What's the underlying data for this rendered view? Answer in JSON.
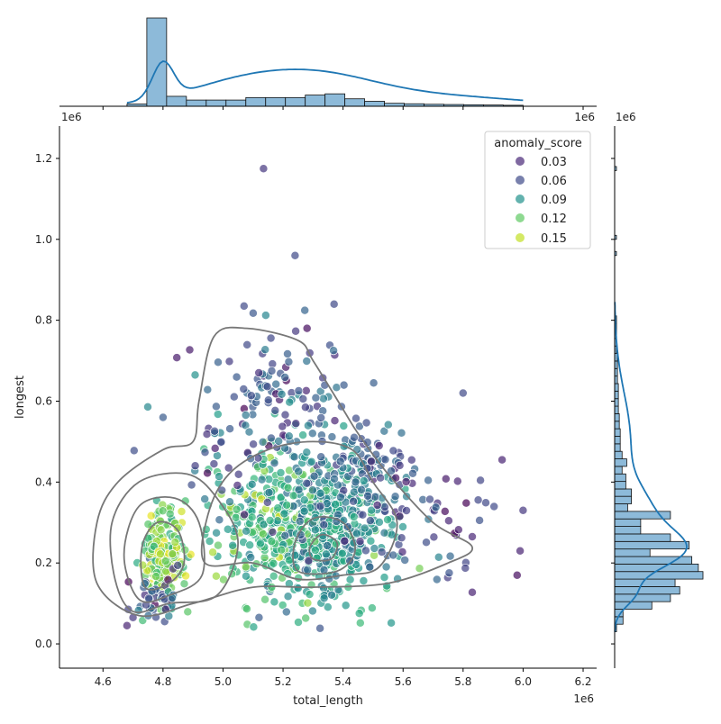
{
  "chart_data": {
    "type": "scatter",
    "subtype": "jointplot",
    "xlabel": "total_length",
    "ylabel": "longest",
    "x_offset_label": "1e6",
    "y_offset_label": "1e6",
    "xlim": [
      4.455,
      6.245
    ],
    "ylim": [
      -0.06,
      1.28
    ],
    "x_ticks": [
      4.6,
      4.8,
      5.0,
      5.2,
      5.4,
      5.6,
      5.8,
      6.0,
      6.2
    ],
    "x_tick_labels": [
      "4.6",
      "4.8",
      "5.0",
      "5.2",
      "5.4",
      "5.6",
      "5.8",
      "6.0",
      "6.2"
    ],
    "y_ticks": [
      0.0,
      0.2,
      0.4,
      0.6,
      0.8,
      1.0,
      1.2
    ],
    "y_tick_labels": [
      "0.0",
      "0.2",
      "0.4",
      "0.6",
      "0.8",
      "1.0",
      "1.2"
    ],
    "grid": false,
    "legend": {
      "title": "anomaly_score",
      "placement": "top-right",
      "entries": [
        {
          "label": "0.03",
          "value": 0.03,
          "color": "#482878"
        },
        {
          "label": "0.06",
          "value": 0.06,
          "color": "#3e4a89"
        },
        {
          "label": "0.09",
          "value": 0.09,
          "color": "#21918c"
        },
        {
          "label": "0.12",
          "value": 0.12,
          "color": "#5ec962"
        },
        {
          "label": "0.15",
          "value": 0.15,
          "color": "#c2df23"
        }
      ]
    },
    "hue_colormap": "viridis",
    "marginal_color": "#1f77b4",
    "marginal_fill": "#8dbad9",
    "contour_color": "#777777",
    "points": [
      {
        "x": 5.135,
        "y": 1.175,
        "s": 0.04
      },
      {
        "x": 5.24,
        "y": 0.96,
        "s": 0.05
      },
      {
        "x": 5.07,
        "y": 0.835,
        "s": 0.05
      },
      {
        "x": 5.37,
        "y": 0.84,
        "s": 0.05
      },
      {
        "x": 5.28,
        "y": 0.78,
        "s": 0.02
      },
      {
        "x": 4.8,
        "y": 0.56,
        "s": 0.06
      },
      {
        "x": 5.8,
        "y": 0.62,
        "s": 0.05
      },
      {
        "x": 5.93,
        "y": 0.455,
        "s": 0.03
      },
      {
        "x": 6.0,
        "y": 0.33,
        "s": 0.04
      },
      {
        "x": 5.99,
        "y": 0.23,
        "s": 0.03
      },
      {
        "x": 5.98,
        "y": 0.17,
        "s": 0.02
      },
      {
        "x": 4.68,
        "y": 0.045,
        "s": 0.03
      },
      {
        "x": 4.7,
        "y": 0.065,
        "s": 0.04
      },
      {
        "x": 5.12,
        "y": 0.065,
        "s": 0.06
      }
    ],
    "x_hist": {
      "bin_edges": [
        4.68,
        4.746,
        4.812,
        4.878,
        4.944,
        5.01,
        5.076,
        5.142,
        5.208,
        5.274,
        5.34,
        5.406,
        5.472,
        5.538,
        5.604,
        5.67,
        5.736,
        5.802,
        5.868,
        5.934,
        6.0
      ],
      "counts": [
        9,
        355,
        40,
        25,
        25,
        25,
        35,
        35,
        35,
        45,
        50,
        30,
        20,
        12,
        10,
        8,
        7,
        6,
        5,
        4
      ]
    },
    "y_hist": {
      "bin_edges": [
        0.03,
        0.0486,
        0.0672,
        0.0858,
        0.1044,
        0.123,
        0.1416,
        0.1602,
        0.1788,
        0.1974,
        0.216,
        0.2346,
        0.2532,
        0.2718,
        0.2904,
        0.309,
        0.3276,
        0.3462,
        0.3648,
        0.383,
        0.4016,
        0.4202,
        0.4388,
        0.4574,
        0.476,
        0.4946,
        0.5132,
        0.5318,
        0.5504,
        0.569,
        0.5876,
        0.6062,
        0.6248,
        0.6434,
        0.662,
        0.6806,
        0.6992,
        0.7178,
        0.7364,
        0.755,
        0.7736,
        0.7922,
        0.8108
      ],
      "counts": [
        2,
        9,
        9,
        40,
        60,
        70,
        65,
        95,
        90,
        83,
        38,
        80,
        60,
        28,
        28,
        60,
        14,
        18,
        18,
        12,
        12,
        8,
        13,
        8,
        6,
        6,
        6,
        5,
        5,
        4,
        4,
        4,
        4,
        3,
        3,
        3,
        3,
        2,
        2,
        2,
        2,
        2
      ]
    }
  }
}
